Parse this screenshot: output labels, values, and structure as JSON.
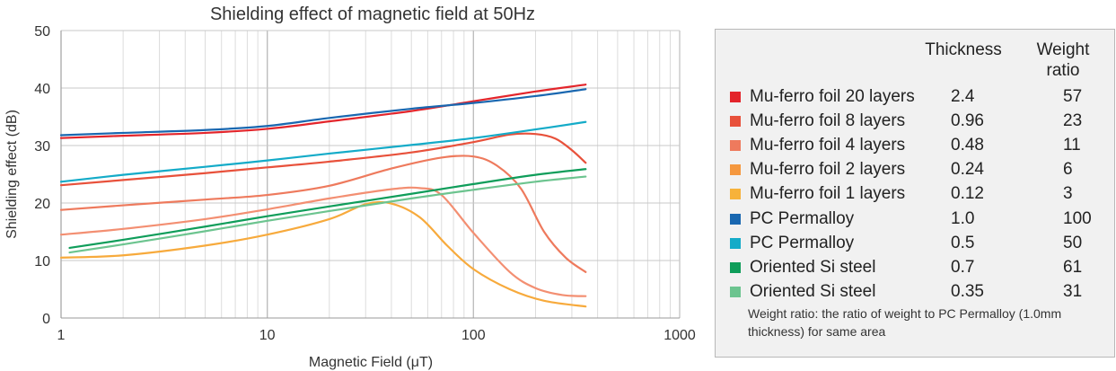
{
  "chart_data": {
    "type": "line",
    "title": "Shielding effect of magnetic field at 50Hz",
    "xlabel": "Magnetic Field  (μT)",
    "ylabel": "Shielding effect (dB)",
    "xscale": "log",
    "xlim": [
      1,
      1000
    ],
    "ylim": [
      0,
      50
    ],
    "xticks": [
      "1",
      "10",
      "100",
      "1000"
    ],
    "yticks": [
      "0",
      "10",
      "20",
      "30",
      "40",
      "50"
    ],
    "grid": true,
    "series": [
      {
        "name": "Mu-ferro foil 20 layers",
        "color": "#e3252b",
        "x": [
          1,
          2,
          5,
          10,
          20,
          50,
          100,
          200,
          350
        ],
        "y": [
          31.3,
          31.7,
          32.2,
          32.9,
          34.2,
          36.0,
          37.7,
          39.4,
          40.6
        ]
      },
      {
        "name": "Mu-ferro foil 8 layers",
        "color": "#e8513b",
        "x": [
          1,
          2,
          5,
          10,
          20,
          50,
          100,
          150,
          200,
          250,
          300,
          350
        ],
        "y": [
          23.1,
          24.0,
          25.2,
          26.2,
          27.2,
          28.8,
          30.6,
          31.9,
          32.0,
          31.2,
          29.2,
          27.0
        ]
      },
      {
        "name": "Mu-ferro foil 4 layers",
        "color": "#ee7a5d",
        "x": [
          1,
          2,
          5,
          10,
          20,
          40,
          70,
          100,
          130,
          170,
          220,
          280,
          350
        ],
        "y": [
          18.8,
          19.6,
          20.6,
          21.4,
          23.0,
          26.0,
          27.9,
          28.1,
          26.5,
          22.5,
          15.0,
          10.5,
          8.0
        ]
      },
      {
        "name": "Mu-ferro foil 2 layers",
        "color": "#f38f72",
        "x": [
          1,
          2,
          5,
          10,
          20,
          40,
          55,
          70,
          100,
          150,
          200,
          270,
          350
        ],
        "y": [
          14.5,
          15.5,
          17.2,
          18.9,
          20.8,
          22.4,
          22.6,
          21.4,
          14.8,
          8.0,
          5.2,
          4.0,
          3.8
        ]
      },
      {
        "name": "Mu-ferro foil 1 layers",
        "color": "#f7aa3c",
        "x": [
          1,
          2,
          5,
          10,
          20,
          30,
          40,
          55,
          75,
          100,
          150,
          220,
          350
        ],
        "y": [
          10.5,
          10.9,
          12.6,
          14.5,
          17.2,
          19.8,
          19.9,
          17.5,
          12.5,
          8.5,
          5.0,
          3.0,
          2.0
        ]
      },
      {
        "name": "PC Permalloy",
        "color": "#1967b0",
        "x": [
          1,
          2,
          5,
          10,
          20,
          50,
          100,
          200,
          350
        ],
        "y": [
          31.8,
          32.2,
          32.7,
          33.4,
          34.8,
          36.4,
          37.4,
          38.6,
          39.8
        ]
      },
      {
        "name": "PC Permalloy",
        "color": "#14abc8",
        "x": [
          1,
          2,
          5,
          10,
          20,
          50,
          100,
          200,
          350
        ],
        "y": [
          23.7,
          24.9,
          26.3,
          27.4,
          28.6,
          30.1,
          31.3,
          32.8,
          34.1
        ]
      },
      {
        "name": "Oriented Si steel",
        "color": "#0f9d5a",
        "x": [
          1.1,
          2,
          5,
          10,
          20,
          50,
          100,
          200,
          350
        ],
        "y": [
          12.2,
          13.6,
          15.9,
          17.7,
          19.4,
          21.6,
          23.3,
          24.9,
          25.9
        ]
      },
      {
        "name": "Oriented Si steel",
        "color": "#6cc48f",
        "x": [
          1.1,
          2,
          5,
          10,
          20,
          50,
          100,
          200,
          350
        ],
        "y": [
          11.4,
          12.8,
          15.1,
          16.9,
          18.6,
          20.8,
          22.3,
          23.7,
          24.6
        ]
      }
    ]
  },
  "legend": {
    "headers": {
      "thickness": "Thickness",
      "weight_ratio_1": "Weight",
      "weight_ratio_2": "ratio"
    },
    "rows": [
      {
        "name": "Mu-ferro foil 20 layers",
        "thickness": "2.4",
        "ratio": "57",
        "color": "#e3252b"
      },
      {
        "name": "Mu-ferro foil 8 layers",
        "thickness": "0.96",
        "ratio": "23",
        "color": "#e8513b"
      },
      {
        "name": "Mu-ferro foil 4 layers",
        "thickness": "0.48",
        "ratio": "11",
        "color": "#ee7a5d"
      },
      {
        "name": "Mu-ferro foil 2 layers",
        "thickness": "0.24",
        "ratio": "6",
        "color": "#f5983f"
      },
      {
        "name": "Mu-ferro foil 1 layers",
        "thickness": "0.12",
        "ratio": "3",
        "color": "#f7b23a"
      },
      {
        "name": "PC Permalloy",
        "thickness": "1.0",
        "ratio": "100",
        "color": "#1967b0"
      },
      {
        "name": "PC Permalloy",
        "thickness": "0.5",
        "ratio": "50",
        "color": "#14abc8"
      },
      {
        "name": "Oriented Si steel",
        "thickness": "0.7",
        "ratio": "61",
        "color": "#0f9d5a"
      },
      {
        "name": "Oriented Si steel",
        "thickness": "0.35",
        "ratio": "31",
        "color": "#6cc48f"
      }
    ],
    "note": "Weight ratio: the ratio of weight to PC Permalloy (1.0mm thickness) for same area"
  }
}
